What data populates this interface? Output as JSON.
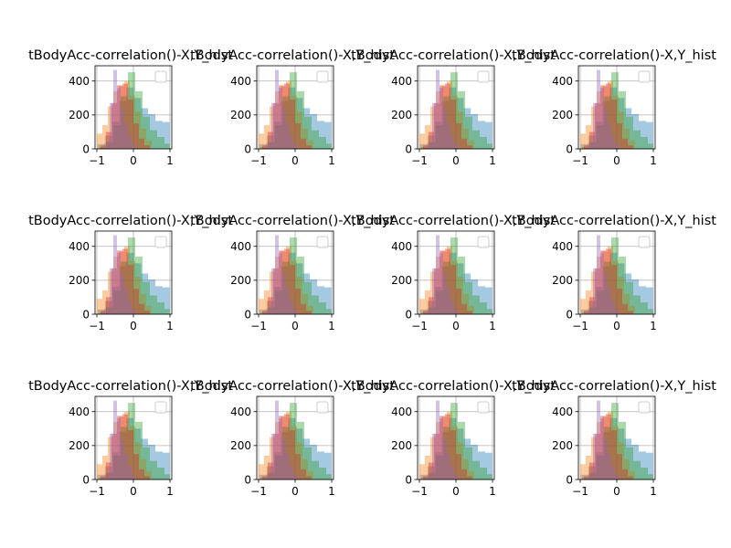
{
  "figure": {
    "rows": 3,
    "cols": 4,
    "background": "#ffffff"
  },
  "chart_data": {
    "type": "bar",
    "subplot_titles": [
      "tBodyAcc-correlation()-X,Y_hist",
      "tBodyAcc-correlation()-X,Y_hist",
      "tBodyAcc-correlation()-X,Y_hist",
      "tBodyAcc-correlation()-X,Y_hist"
    ],
    "xlim": [
      -1.05,
      1.05
    ],
    "ylim": [
      0,
      490
    ],
    "xticks": [
      -1,
      0,
      1
    ],
    "xtick_labels": [
      "−1",
      "0",
      "1"
    ],
    "yticks": [
      0,
      200,
      400
    ],
    "ytick_labels": [
      "0",
      "200",
      "400"
    ],
    "grid": true,
    "legend": "top-right, empty",
    "series": [
      {
        "color": "#1f77b4",
        "bins": [
          [
            -0.98,
            -0.78,
            28
          ],
          [
            -0.78,
            -0.58,
            78
          ],
          [
            -0.58,
            -0.39,
            160
          ],
          [
            -0.39,
            -0.19,
            282
          ],
          [
            -0.19,
            0.01,
            362
          ],
          [
            0.01,
            0.21,
            300
          ],
          [
            0.21,
            0.4,
            240
          ],
          [
            0.4,
            0.6,
            205
          ],
          [
            0.6,
            0.8,
            165
          ],
          [
            0.8,
            0.99,
            158
          ]
        ]
      },
      {
        "color": "#ff7f0e",
        "bins": [
          [
            -1.0,
            -0.85,
            90
          ],
          [
            -0.85,
            -0.7,
            140
          ],
          [
            -0.7,
            -0.55,
            250
          ],
          [
            -0.55,
            -0.4,
            340
          ],
          [
            -0.4,
            -0.25,
            370
          ],
          [
            -0.25,
            -0.1,
            400
          ],
          [
            -0.1,
            0.05,
            315
          ],
          [
            0.05,
            0.2,
            220
          ],
          [
            0.2,
            0.35,
            120
          ],
          [
            0.35,
            0.5,
            50
          ]
        ]
      },
      {
        "color": "#2ca02c",
        "bins": [
          [
            -0.95,
            -0.75,
            10
          ],
          [
            -0.75,
            -0.55,
            40
          ],
          [
            -0.55,
            -0.35,
            140
          ],
          [
            -0.35,
            -0.15,
            310
          ],
          [
            -0.15,
            0.05,
            452
          ],
          [
            0.05,
            0.25,
            340
          ],
          [
            0.25,
            0.45,
            190
          ],
          [
            0.45,
            0.65,
            110
          ],
          [
            0.65,
            0.85,
            70
          ],
          [
            0.85,
            1.0,
            30
          ]
        ]
      },
      {
        "color": "#d62728",
        "bins": [
          [
            -0.9,
            -0.75,
            20
          ],
          [
            -0.75,
            -0.6,
            100
          ],
          [
            -0.6,
            -0.45,
            270
          ],
          [
            -0.45,
            -0.3,
            375
          ],
          [
            -0.3,
            -0.15,
            385
          ],
          [
            -0.15,
            0.0,
            290
          ],
          [
            0.0,
            0.15,
            150
          ],
          [
            0.15,
            0.3,
            60
          ],
          [
            0.3,
            0.45,
            20
          ]
        ]
      },
      {
        "color": "#9467bd",
        "bins": [
          [
            -0.8,
            -0.65,
            30
          ],
          [
            -0.65,
            -0.55,
            270
          ],
          [
            -0.55,
            -0.45,
            465
          ],
          [
            -0.45,
            -0.35,
            360
          ],
          [
            -0.35,
            -0.25,
            230
          ],
          [
            -0.25,
            -0.15,
            150
          ],
          [
            -0.15,
            -0.05,
            80
          ],
          [
            -0.05,
            0.05,
            30
          ]
        ]
      }
    ]
  }
}
